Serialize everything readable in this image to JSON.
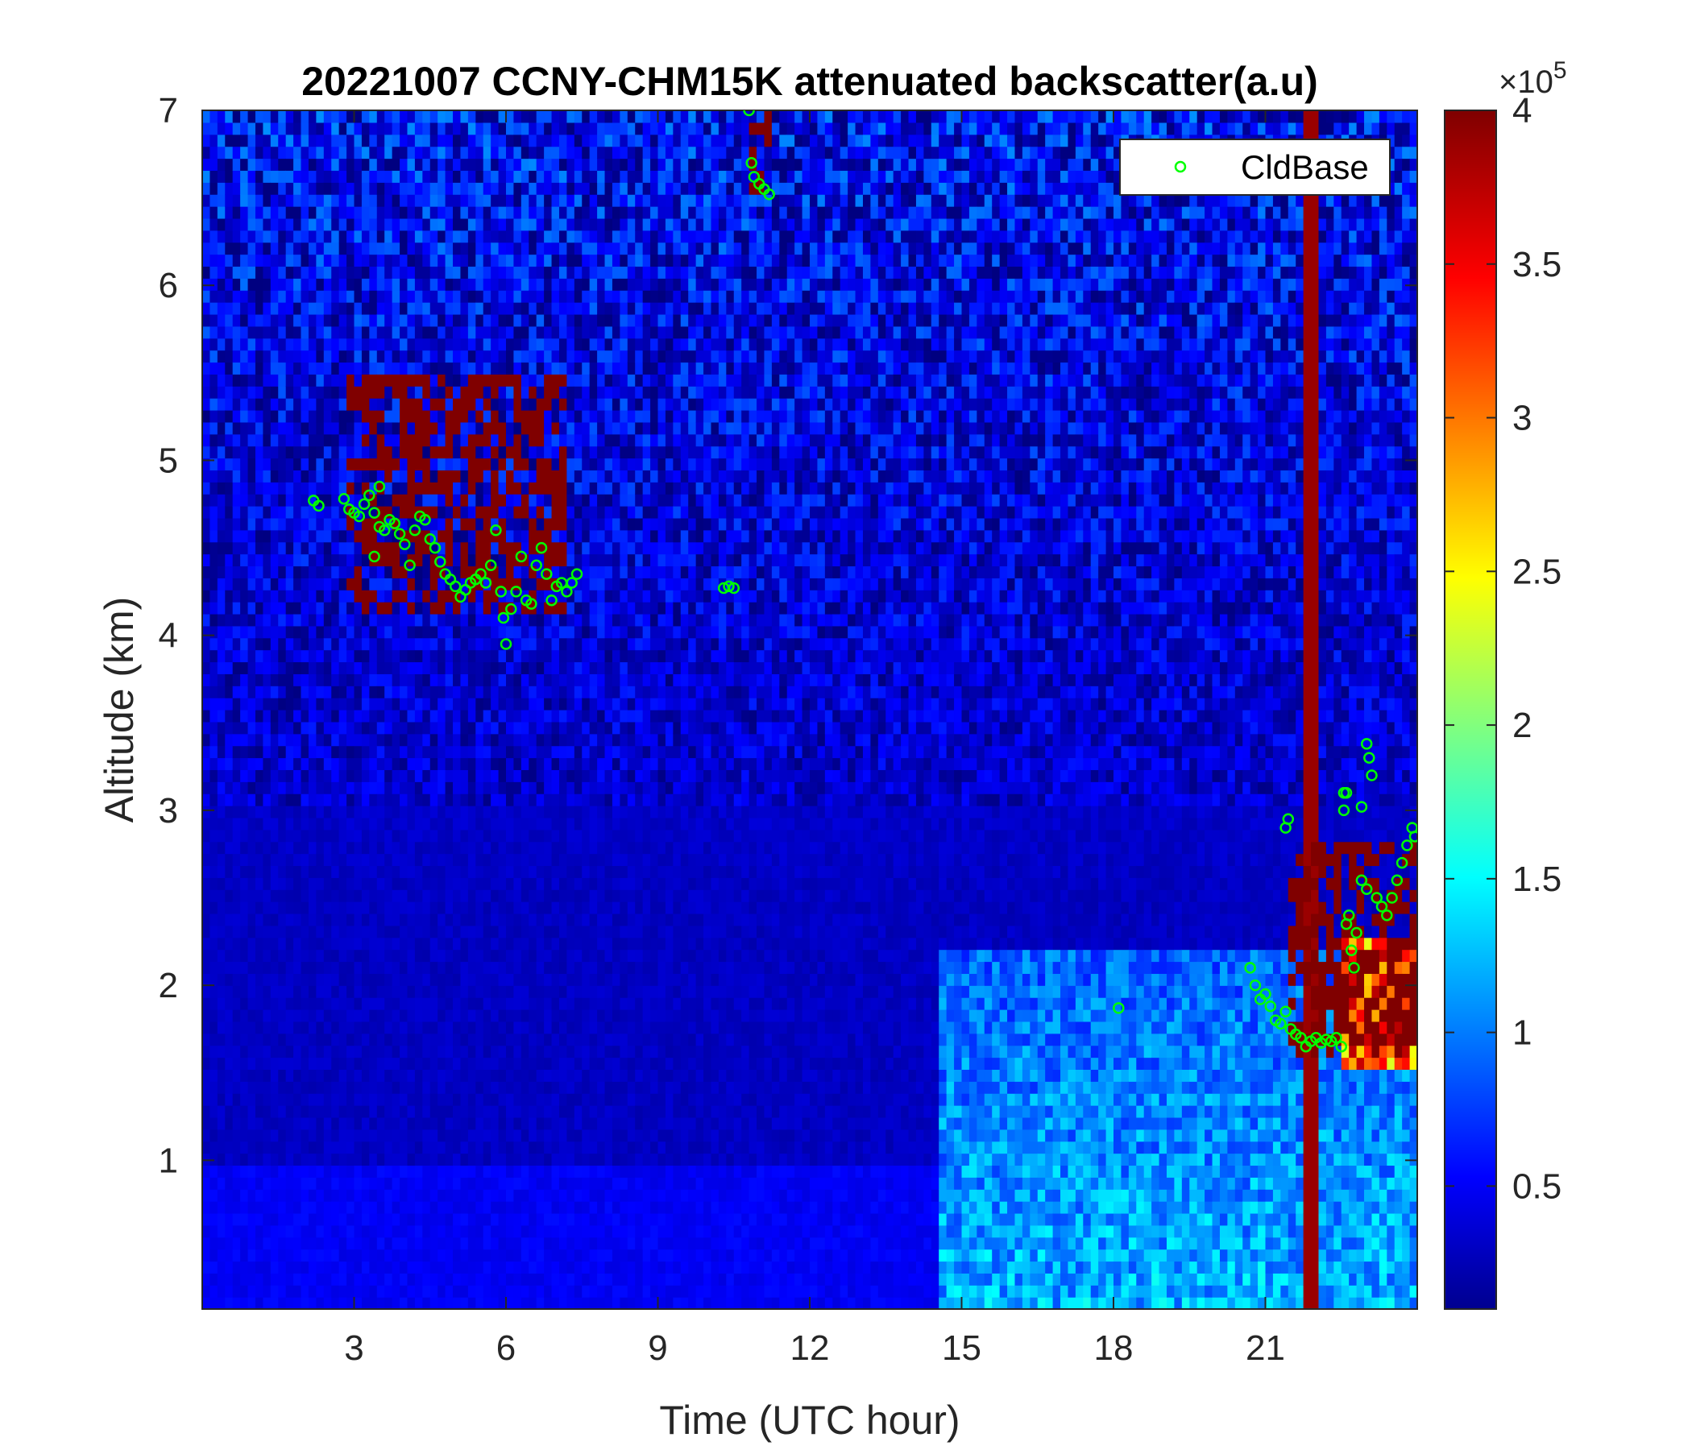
{
  "chart_data": {
    "type": "heatmap",
    "title": "20221007 CCNY-CHM15K attenuated backscatter(a.u)",
    "xlabel": "Time (UTC hour)",
    "ylabel": "Altitude (km)",
    "xlim": [
      0,
      24
    ],
    "ylim": [
      0.15,
      7
    ],
    "xticks": [
      3,
      6,
      9,
      12,
      15,
      18,
      21
    ],
    "yticks": [
      1,
      2,
      3,
      4,
      5,
      6,
      7
    ],
    "colorbar": {
      "colormap": "jet",
      "range": [
        0.1,
        4
      ],
      "ticks": [
        0.5,
        1,
        1.5,
        2,
        2.5,
        3,
        3.5,
        4
      ],
      "tick_labels": [
        "0.5",
        "1",
        "1.5",
        "2",
        "2.5",
        "3",
        "3.5",
        "4"
      ],
      "exponent_base": "×10",
      "exponent": "5"
    },
    "legend": {
      "entries": [
        "CldBase"
      ],
      "location": "top-right",
      "marker": "circle",
      "color": "#00ff00"
    },
    "features": [
      {
        "name": "high cloud 3-7 UTC",
        "t_range": [
          2.8,
          7.2
        ],
        "alt_range": [
          4.1,
          5.5
        ],
        "level": 4
      },
      {
        "name": "high cloud near 11 UTC",
        "t_range": [
          10.8,
          11.2
        ],
        "alt_range": [
          6.5,
          7
        ],
        "level": 4
      },
      {
        "name": "low cloud 21-24 UTC",
        "t_range": [
          21.4,
          24
        ],
        "alt_range": [
          1.6,
          2.8
        ],
        "level": 4
      },
      {
        "name": "boundary layer aerosol 14-24 UTC",
        "t_range": [
          14.5,
          24
        ],
        "alt_range": [
          0.15,
          2.2
        ],
        "level": 1.5
      }
    ],
    "series": [
      {
        "name": "CldBase",
        "t": [
          2.2,
          2.3,
          2.8,
          2.9,
          3.0,
          3.1,
          3.2,
          3.3,
          3.4,
          3.4,
          3.5,
          3.5,
          3.6,
          3.7,
          3.8,
          3.9,
          4.0,
          4.1,
          4.2,
          4.3,
          4.4,
          4.5,
          4.6,
          4.7,
          4.8,
          4.9,
          5.0,
          5.1,
          5.2,
          5.3,
          5.4,
          5.5,
          5.6,
          5.7,
          5.8,
          5.9,
          5.95,
          6.0,
          6.1,
          6.2,
          6.3,
          6.4,
          6.5,
          6.6,
          6.7,
          6.8,
          6.9,
          7.0,
          7.1,
          7.2,
          7.3,
          7.4,
          10.3,
          10.4,
          10.5,
          10.8,
          10.85,
          10.9,
          11.0,
          11.1,
          11.2,
          18.1,
          20.7,
          20.8,
          20.9,
          21.0,
          21.1,
          21.2,
          21.3,
          21.4,
          21.5,
          21.6,
          21.7,
          21.8,
          21.9,
          22.0,
          22.1,
          22.2,
          22.3,
          22.4,
          22.5,
          22.55,
          22.6,
          22.65,
          22.7,
          22.75,
          22.8,
          22.9,
          23.0,
          23.05,
          23.1,
          23.2,
          23.3,
          23.4,
          23.5,
          23.6,
          23.7,
          23.8,
          23.9,
          23.95,
          21.4,
          21.45,
          22.55,
          22.6,
          22.9,
          23.0
        ],
        "alt": [
          4.77,
          4.74,
          4.78,
          4.72,
          4.7,
          4.68,
          4.75,
          4.8,
          4.7,
          4.45,
          4.62,
          4.85,
          4.6,
          4.66,
          4.64,
          4.58,
          4.52,
          4.4,
          4.6,
          4.68,
          4.66,
          4.55,
          4.5,
          4.42,
          4.35,
          4.32,
          4.28,
          4.22,
          4.26,
          4.3,
          4.32,
          4.35,
          4.3,
          4.4,
          4.6,
          4.25,
          4.1,
          3.95,
          4.15,
          4.25,
          4.45,
          4.2,
          4.18,
          4.4,
          4.5,
          4.35,
          4.2,
          4.28,
          4.3,
          4.25,
          4.3,
          4.35,
          4.27,
          4.28,
          4.27,
          7.0,
          6.7,
          6.62,
          6.58,
          6.55,
          6.52,
          1.87,
          2.1,
          2.0,
          1.92,
          1.95,
          1.88,
          1.8,
          1.78,
          1.85,
          1.75,
          1.72,
          1.7,
          1.65,
          1.68,
          1.7,
          1.67,
          1.69,
          1.68,
          1.7,
          1.65,
          3.1,
          2.35,
          2.4,
          2.2,
          2.1,
          2.3,
          2.6,
          2.55,
          3.3,
          3.2,
          2.5,
          2.45,
          2.4,
          2.5,
          2.6,
          2.7,
          2.8,
          2.9,
          2.85,
          2.9,
          2.95,
          3.0,
          3.1,
          3.02,
          3.38
        ]
      }
    ]
  }
}
